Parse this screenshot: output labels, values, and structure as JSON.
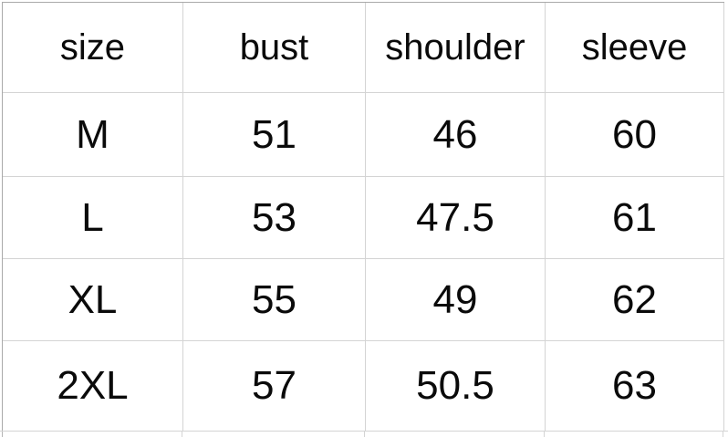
{
  "colors": {
    "background": "#ffffff",
    "gridline": "#d4d4d4",
    "outer_border_top_left": "#a9a9a9",
    "text": "#0a0a0a"
  },
  "chart_data": {
    "type": "table",
    "title": "",
    "columns": [
      "size",
      "bust",
      "shoulder",
      "sleeve"
    ],
    "rows": [
      [
        "M",
        "51",
        "46",
        "60"
      ],
      [
        "L",
        "53",
        "47.5",
        "61"
      ],
      [
        "XL",
        "55",
        "49",
        "62"
      ],
      [
        "2XL",
        "57",
        "50.5",
        "63"
      ]
    ]
  }
}
